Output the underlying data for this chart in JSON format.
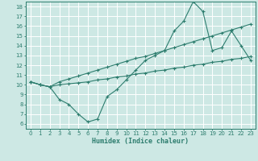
{
  "xlabel": "Humidex (Indice chaleur)",
  "bg_color": "#cde8e4",
  "line_color": "#2d7d6e",
  "grid_color": "#ffffff",
  "xlim": [
    -0.5,
    23.5
  ],
  "ylim": [
    5.5,
    18.5
  ],
  "xticks": [
    0,
    1,
    2,
    3,
    4,
    5,
    6,
    7,
    8,
    9,
    10,
    11,
    12,
    13,
    14,
    15,
    16,
    17,
    18,
    19,
    20,
    21,
    22,
    23
  ],
  "yticks": [
    6,
    7,
    8,
    9,
    10,
    11,
    12,
    13,
    14,
    15,
    16,
    17,
    18
  ],
  "line1_x": [
    0,
    1,
    2,
    3,
    4,
    5,
    6,
    7,
    8,
    9,
    10,
    11,
    12,
    13,
    14,
    15,
    16,
    17,
    18,
    19,
    20,
    21,
    22,
    23
  ],
  "line1_y": [
    10.3,
    10.0,
    9.8,
    8.5,
    8.0,
    7.0,
    6.2,
    6.5,
    8.8,
    9.5,
    10.5,
    11.5,
    12.5,
    13.0,
    13.5,
    15.5,
    16.5,
    18.5,
    17.5,
    13.5,
    13.8,
    15.5,
    14.0,
    12.5
  ],
  "line2_x": [
    0,
    1,
    2,
    3,
    4,
    5,
    6,
    7,
    8,
    9,
    10,
    11,
    12,
    13,
    14,
    15,
    16,
    17,
    18,
    19,
    20,
    21,
    22,
    23
  ],
  "line2_y": [
    10.3,
    10.0,
    9.8,
    10.3,
    10.6,
    10.9,
    11.2,
    11.5,
    11.8,
    12.1,
    12.4,
    12.7,
    12.9,
    13.2,
    13.5,
    13.8,
    14.1,
    14.4,
    14.7,
    15.0,
    15.3,
    15.6,
    15.9,
    16.2
  ],
  "line3_x": [
    0,
    1,
    2,
    3,
    4,
    5,
    6,
    7,
    8,
    9,
    10,
    11,
    12,
    13,
    14,
    15,
    16,
    17,
    18,
    19,
    20,
    21,
    22,
    23
  ],
  "line3_y": [
    10.3,
    10.0,
    9.8,
    10.0,
    10.1,
    10.2,
    10.3,
    10.5,
    10.6,
    10.8,
    10.9,
    11.1,
    11.2,
    11.4,
    11.5,
    11.7,
    11.8,
    12.0,
    12.1,
    12.3,
    12.4,
    12.6,
    12.7,
    12.9
  ]
}
